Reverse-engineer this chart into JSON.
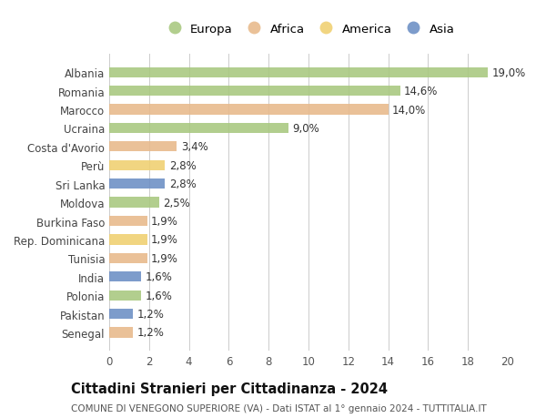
{
  "countries": [
    "Albania",
    "Romania",
    "Marocco",
    "Ucraina",
    "Costa d'Avorio",
    "Perù",
    "Sri Lanka",
    "Moldova",
    "Burkina Faso",
    "Rep. Dominicana",
    "Tunisia",
    "India",
    "Polonia",
    "Pakistan",
    "Senegal"
  ],
  "values": [
    19.0,
    14.6,
    14.0,
    9.0,
    3.4,
    2.8,
    2.8,
    2.5,
    1.9,
    1.9,
    1.9,
    1.6,
    1.6,
    1.2,
    1.2
  ],
  "continents": [
    "Europa",
    "Europa",
    "Africa",
    "Europa",
    "Africa",
    "America",
    "Asia",
    "Europa",
    "Africa",
    "America",
    "Africa",
    "Asia",
    "Europa",
    "Asia",
    "Africa"
  ],
  "continent_colors": {
    "Europa": "#a8c87e",
    "Africa": "#e8b98a",
    "America": "#f0d070",
    "Asia": "#6b8ec4"
  },
  "legend_order": [
    "Europa",
    "Africa",
    "America",
    "Asia"
  ],
  "title": "Cittadini Stranieri per Cittadinanza - 2024",
  "subtitle": "COMUNE DI VENEGONO SUPERIORE (VA) - Dati ISTAT al 1° gennaio 2024 - TUTTITALIA.IT",
  "xlim": [
    0,
    20
  ],
  "xticks": [
    0,
    2,
    4,
    6,
    8,
    10,
    12,
    14,
    16,
    18,
    20
  ],
  "background_color": "#ffffff",
  "grid_color": "#cccccc",
  "bar_height": 0.55,
  "title_fontsize": 10.5,
  "subtitle_fontsize": 7.5,
  "label_fontsize": 8.5,
  "tick_fontsize": 8.5,
  "legend_fontsize": 9.5
}
